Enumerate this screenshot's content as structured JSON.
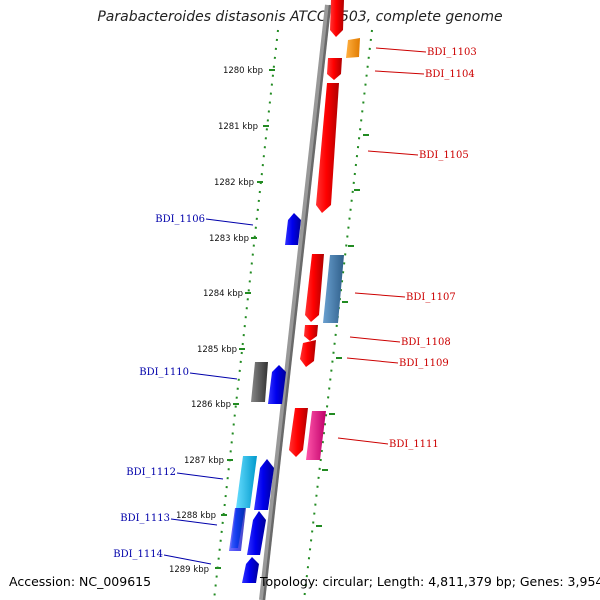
{
  "title": "Parabacteroides distasonis ATCC 8503, complete genome",
  "accession": "Accession: NC_009615",
  "topology": "Topology: circular; Length: 4,811,379 bp; Genes: 3,954",
  "colors": {
    "backbone": "#777777",
    "dotted_track": "#228b22",
    "label_red": "#cc0000",
    "label_blue": "#0000aa",
    "gene_red": "#ee0000",
    "gene_orange": "#ff9900",
    "gene_steelblue": "#4682b4",
    "gene_blue": "#0000ee",
    "gene_gray": "#555555",
    "gene_cyan": "#00bbee",
    "gene_pink": "#ee1188"
  },
  "ticks": [
    {
      "label": "1280 kbp"
    },
    {
      "label": "1281 kbp"
    },
    {
      "label": "1282 kbp"
    },
    {
      "label": "1283 kbp"
    },
    {
      "label": "1284 kbp"
    },
    {
      "label": "1285 kbp"
    },
    {
      "label": "1286 kbp"
    },
    {
      "label": "1287 kbp"
    },
    {
      "label": "1288 kbp"
    },
    {
      "label": "1289 kbp"
    }
  ],
  "genes": [
    {
      "label": "BDI_1103",
      "strand": "reverse",
      "color": "gene_orange",
      "labeled": true,
      "side": "right"
    },
    {
      "label": "BDI_1104",
      "strand": "forward",
      "color": "gene_red",
      "labeled": true,
      "side": "right"
    },
    {
      "label": "BDI_1105",
      "strand": "forward",
      "color": "gene_red",
      "labeled": true,
      "side": "right"
    },
    {
      "label": "BDI_1106",
      "strand": "reverse",
      "color": "gene_blue",
      "labeled": true,
      "side": "left"
    },
    {
      "label": "BDI_1107",
      "strand": "reverse",
      "color": "gene_steelblue",
      "labeled": true,
      "side": "right"
    },
    {
      "label": "BDI_1108",
      "strand": "forward",
      "color": "gene_red",
      "labeled": true,
      "side": "right"
    },
    {
      "label": "BDI_1109",
      "strand": "forward",
      "color": "gene_red",
      "labeled": true,
      "side": "right"
    },
    {
      "label": "BDI_1110",
      "strand": "reverse",
      "color": "gene_blue",
      "labeled": true,
      "side": "left"
    },
    {
      "label": "BDI_1111",
      "strand": "forward",
      "color": "gene_red",
      "labeled": true,
      "side": "right"
    },
    {
      "label": "BDI_1112",
      "strand": "reverse",
      "color": "gene_blue",
      "labeled": true,
      "side": "left"
    },
    {
      "label": "BDI_1113",
      "strand": "reverse",
      "color": "gene_blue",
      "labeled": true,
      "side": "left"
    },
    {
      "label": "BDI_1114",
      "strand": "reverse",
      "color": "gene_blue",
      "labeled": true,
      "side": "left"
    }
  ]
}
